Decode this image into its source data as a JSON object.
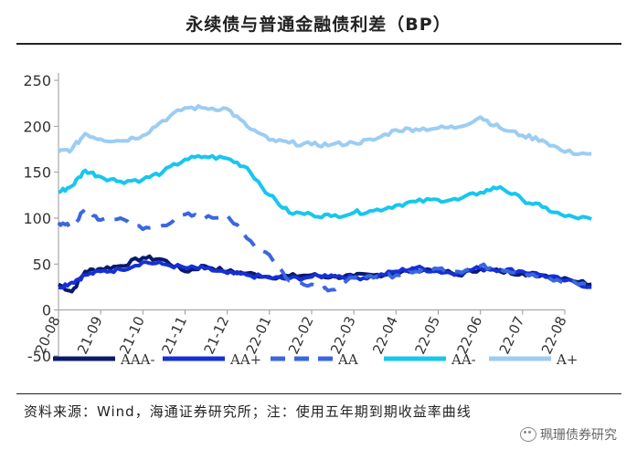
{
  "title": "永续债与普通金融债利差（BP）",
  "source": "资料来源：Wind，海通证券研究所；注：使用五年期到期收益率曲线",
  "watermark": "珮珊债券研究",
  "colors": {
    "AAA-": "#0a1a6b",
    "AA+": "#1530d6",
    "AA": "#3a66e0",
    "AA-": "#18c6ee",
    "A+": "#9ccdf3"
  },
  "chart_data": {
    "type": "line",
    "title": "永续债与普通金融债利差（BP）",
    "ylim": [
      -50,
      250
    ],
    "yticks": [
      -50,
      0,
      50,
      100,
      150,
      200,
      250
    ],
    "xlim": [
      "2020-08-01",
      "2022-08-31"
    ],
    "xticks": [
      "20-08",
      "21-09",
      "21-10",
      "21-11",
      "21-12",
      "22-01",
      "22-02",
      "22-03",
      "22-04",
      "22-05",
      "22-06",
      "22-07",
      "22-08"
    ],
    "legend_position": "bottom",
    "series": [
      {
        "name": "AAA-",
        "style": "solid",
        "x": [
          "20-08",
          "20-08-20",
          "21-08-20",
          "21-09-01",
          "21-09-15",
          "21-10-01",
          "21-10-15",
          "21-11-01",
          "21-11-15",
          "21-12-01",
          "21-12-15",
          "22-01-01",
          "22-01-15",
          "22-02-01",
          "22-02-15",
          "22-03-01",
          "22-03-15",
          "22-04-01",
          "22-04-15",
          "22-05-01",
          "22-05-15",
          "22-06-01",
          "22-06-15",
          "22-07-01",
          "22-07-15",
          "22-08-01",
          "22-08-20"
        ],
        "y": [
          28,
          20,
          42,
          45,
          48,
          57,
          55,
          42,
          48,
          42,
          40,
          36,
          37,
          38,
          36,
          37,
          38,
          40,
          44,
          44,
          38,
          45,
          42,
          40,
          38,
          35,
          28
        ]
      },
      {
        "name": "AA+",
        "style": "solid",
        "x": [
          "20-08",
          "20-08-20",
          "21-08-20",
          "21-09-01",
          "21-09-15",
          "21-10-01",
          "21-10-15",
          "21-11-01",
          "21-11-15",
          "21-12-01",
          "21-12-15",
          "22-01-01",
          "22-01-15",
          "22-02-01",
          "22-02-15",
          "22-03-01",
          "22-03-15",
          "22-04-01",
          "22-04-15",
          "22-05-01",
          "22-05-15",
          "22-06-01",
          "22-06-15",
          "22-07-01",
          "22-07-15",
          "22-08-01",
          "22-08-20"
        ],
        "y": [
          25,
          30,
          38,
          42,
          44,
          52,
          50,
          46,
          45,
          40,
          38,
          35,
          34,
          36,
          38,
          35,
          36,
          42,
          46,
          42,
          40,
          46,
          44,
          42,
          38,
          32,
          25
        ]
      },
      {
        "name": "AA",
        "style": "dashed",
        "x": [
          "20-08",
          "20-08-20",
          "21-08-20",
          "21-09-01",
          "21-09-15",
          "21-10-01",
          "21-10-15",
          "21-11-01",
          "21-11-15",
          "21-12-01",
          "21-12-15",
          "22-01-01",
          "22-01-15",
          "22-02-01",
          "22-02-15",
          "22-03-01",
          "22-03-15",
          "22-04-01",
          "22-04-15",
          "22-05-01",
          "22-05-15",
          "22-06-01",
          "22-06-15",
          "22-07-01",
          "22-07-15",
          "22-08-01",
          "22-08-20"
        ],
        "y": [
          95,
          90,
          110,
          98,
          100,
          88,
          92,
          104,
          100,
          103,
          78,
          60,
          32,
          28,
          22,
          35,
          35,
          38,
          42,
          45,
          42,
          48,
          45,
          40,
          35,
          30,
          28
        ]
      },
      {
        "name": "AA-",
        "style": "solid",
        "x": [
          "20-08",
          "20-08-20",
          "21-08-20",
          "21-09-01",
          "21-09-15",
          "21-10-01",
          "21-10-15",
          "21-11-01",
          "21-11-15",
          "21-12-01",
          "21-12-15",
          "22-01-01",
          "22-01-15",
          "22-02-01",
          "22-02-15",
          "22-03-01",
          "22-03-15",
          "22-04-01",
          "22-04-15",
          "22-05-01",
          "22-05-15",
          "22-06-01",
          "22-06-15",
          "22-07-01",
          "22-07-15",
          "22-08-01",
          "22-08-20"
        ],
        "y": [
          128,
          135,
          152,
          145,
          140,
          142,
          150,
          164,
          167,
          165,
          155,
          125,
          106,
          104,
          102,
          106,
          108,
          114,
          118,
          120,
          120,
          128,
          134,
          120,
          112,
          102,
          99
        ]
      },
      {
        "name": "A+",
        "style": "solid",
        "x": [
          "20-08",
          "20-08-20",
          "21-08-20",
          "21-09-01",
          "21-09-15",
          "21-10-01",
          "21-10-15",
          "21-11-01",
          "21-11-15",
          "21-12-01",
          "21-12-15",
          "22-01-01",
          "22-01-15",
          "22-02-01",
          "22-02-15",
          "22-03-01",
          "22-03-15",
          "22-04-01",
          "22-04-15",
          "22-05-01",
          "22-05-15",
          "22-06-01",
          "22-06-15",
          "22-07-01",
          "22-07-15",
          "22-08-01",
          "22-08-20"
        ],
        "y": [
          172,
          175,
          192,
          186,
          184,
          190,
          206,
          220,
          220,
          219,
          200,
          185,
          182,
          180,
          180,
          182,
          185,
          196,
          197,
          198,
          199,
          210,
          198,
          190,
          185,
          172,
          170
        ]
      }
    ]
  }
}
